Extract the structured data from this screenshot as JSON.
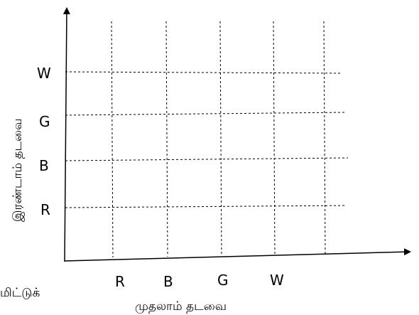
{
  "x_axis": {
    "title": "முதலாம் தடவை",
    "ticks": [
      "R",
      "B",
      "G",
      "W"
    ]
  },
  "y_axis": {
    "title": "இரண்டாம் தடவை",
    "ticks": [
      "R",
      "B",
      "G",
      "W"
    ]
  },
  "corner_label": "மிட்டுக்"
}
